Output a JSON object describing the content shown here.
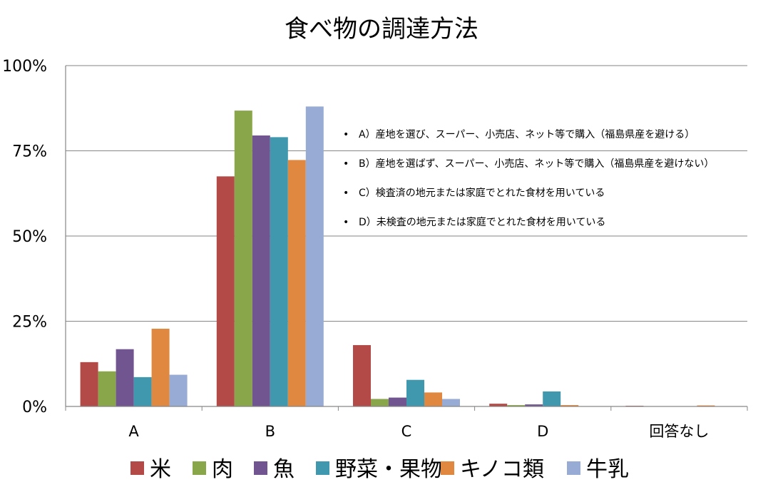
{
  "chart_data": {
    "type": "bar",
    "title": "食べ物の調達方法",
    "xlabel": "",
    "ylabel": "",
    "ylim": [
      0,
      100
    ],
    "y_ticks": [
      "0%",
      "25%",
      "50%",
      "75%",
      "100%"
    ],
    "y_tick_values": [
      0,
      25,
      50,
      75,
      100
    ],
    "grid": true,
    "legend_position": "bottom",
    "categories": [
      "A",
      "B",
      "C",
      "D",
      "回答なし"
    ],
    "series": [
      {
        "name": "米",
        "color": "#b34a47",
        "values": [
          13,
          67.5,
          18,
          0.8,
          0.2
        ]
      },
      {
        "name": "肉",
        "color": "#8aa64b",
        "values": [
          10.3,
          86.8,
          2.2,
          0.4,
          0.1
        ]
      },
      {
        "name": "魚",
        "color": "#715591",
        "values": [
          16.8,
          79.5,
          2.6,
          0.6,
          0.1
        ]
      },
      {
        "name": "野菜・果物",
        "color": "#3f98ae",
        "values": [
          8.6,
          79,
          7.8,
          4.4,
          0.1
        ]
      },
      {
        "name": "キノコ類",
        "color": "#e08840",
        "values": [
          22.8,
          72.3,
          4.1,
          0.4,
          0.3
        ]
      },
      {
        "name": "牛乳",
        "color": "#98abd5",
        "values": [
          9.3,
          88,
          2.2,
          0.1,
          0.1
        ]
      }
    ],
    "annotations": [
      "A）産地を選び、スーパー、小売店、ネット等で購入（福島県産を避ける）",
      "B）産地を選ばず、スーパー、小売店、ネット等で購入（福島県産を避けない）",
      "C）検査済の地元または家庭でとれた食材を用いている",
      "D）未検査の地元または家庭でとれた食材を用いている"
    ],
    "annotation_bullet": "•"
  }
}
